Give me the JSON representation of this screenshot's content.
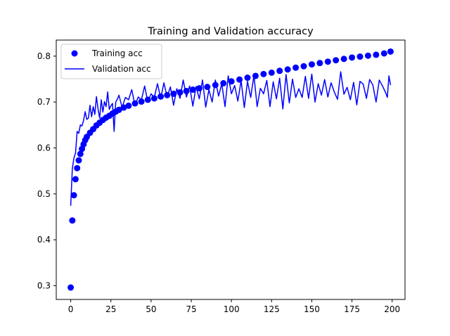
{
  "chart_data": {
    "type": "line",
    "title": "Training and Validation accuracy",
    "xlabel": "",
    "ylabel": "",
    "xlim": [
      -9,
      208
    ],
    "ylim": [
      0.27,
      0.835
    ],
    "x_ticks": [
      0,
      25,
      50,
      75,
      100,
      125,
      150,
      175,
      200
    ],
    "x_tick_labels": [
      "0",
      "25",
      "50",
      "75",
      "100",
      "125",
      "150",
      "175",
      "200"
    ],
    "y_ticks": [
      0.3,
      0.4,
      0.5,
      0.6,
      0.7,
      0.8
    ],
    "y_tick_labels": [
      "0.3",
      "0.4",
      "0.5",
      "0.6",
      "0.7",
      "0.8"
    ],
    "grid": false,
    "legend_position": "top-left",
    "series": [
      {
        "name": "Training acc",
        "style": "markers",
        "color": "#0000ff",
        "x": [
          0,
          1,
          2,
          3,
          4,
          5,
          6,
          7,
          8,
          9,
          10,
          12,
          14,
          16,
          18,
          20,
          22,
          24,
          26,
          28,
          30,
          33,
          36,
          40,
          44,
          48,
          52,
          56,
          60,
          64,
          68,
          72,
          76,
          80,
          85,
          90,
          95,
          100,
          105,
          110,
          115,
          120,
          125,
          130,
          135,
          140,
          145,
          150,
          155,
          160,
          165,
          170,
          175,
          180,
          185,
          190,
          195,
          199
        ],
        "values": [
          0.296,
          0.442,
          0.497,
          0.532,
          0.556,
          0.573,
          0.587,
          0.598,
          0.608,
          0.617,
          0.624,
          0.633,
          0.641,
          0.649,
          0.655,
          0.661,
          0.666,
          0.67,
          0.675,
          0.679,
          0.683,
          0.688,
          0.692,
          0.697,
          0.701,
          0.705,
          0.708,
          0.712,
          0.715,
          0.718,
          0.721,
          0.724,
          0.727,
          0.73,
          0.733,
          0.737,
          0.741,
          0.745,
          0.749,
          0.753,
          0.757,
          0.761,
          0.764,
          0.768,
          0.771,
          0.775,
          0.778,
          0.782,
          0.785,
          0.788,
          0.791,
          0.794,
          0.797,
          0.799,
          0.801,
          0.803,
          0.806,
          0.81
        ]
      },
      {
        "name": "Validation acc",
        "style": "line",
        "color": "#0000ff",
        "x": [
          0,
          1,
          2,
          3,
          4,
          5,
          6,
          7,
          8,
          9,
          10,
          11,
          12,
          13,
          14,
          15,
          16,
          17,
          18,
          19,
          20,
          21,
          22,
          23,
          24,
          25,
          26,
          27,
          28,
          29,
          30,
          32,
          34,
          36,
          38,
          40,
          42,
          44,
          46,
          48,
          50,
          52,
          54,
          56,
          58,
          60,
          62,
          64,
          66,
          68,
          70,
          72,
          74,
          76,
          78,
          80,
          82,
          84,
          86,
          88,
          90,
          92,
          94,
          96,
          98,
          100,
          102,
          104,
          106,
          108,
          110,
          112,
          114,
          116,
          118,
          120,
          122,
          124,
          126,
          128,
          130,
          132,
          134,
          136,
          138,
          140,
          142,
          144,
          146,
          148,
          150,
          152,
          154,
          156,
          158,
          160,
          162,
          164,
          166,
          168,
          170,
          172,
          174,
          176,
          178,
          180,
          182,
          184,
          186,
          188,
          190,
          192,
          194,
          196,
          197,
          198,
          199
        ],
        "values": [
          0.474,
          0.555,
          0.578,
          0.589,
          0.636,
          0.632,
          0.65,
          0.648,
          0.66,
          0.679,
          0.662,
          0.665,
          0.693,
          0.668,
          0.69,
          0.673,
          0.712,
          0.685,
          0.665,
          0.705,
          0.678,
          0.701,
          0.69,
          0.722,
          0.684,
          0.692,
          0.697,
          0.636,
          0.7,
          0.706,
          0.715,
          0.688,
          0.71,
          0.705,
          0.727,
          0.692,
          0.711,
          0.705,
          0.735,
          0.7,
          0.718,
          0.71,
          0.74,
          0.708,
          0.742,
          0.711,
          0.733,
          0.693,
          0.729,
          0.708,
          0.748,
          0.711,
          0.735,
          0.691,
          0.734,
          0.707,
          0.748,
          0.689,
          0.727,
          0.7,
          0.748,
          0.713,
          0.74,
          0.69,
          0.757,
          0.718,
          0.736,
          0.702,
          0.747,
          0.688,
          0.745,
          0.71,
          0.758,
          0.69,
          0.73,
          0.718,
          0.747,
          0.69,
          0.744,
          0.707,
          0.752,
          0.685,
          0.76,
          0.698,
          0.75,
          0.71,
          0.729,
          0.71,
          0.756,
          0.708,
          0.761,
          0.7,
          0.74,
          0.715,
          0.749,
          0.711,
          0.742,
          0.722,
          0.706,
          0.766,
          0.717,
          0.732,
          0.705,
          0.743,
          0.694,
          0.745,
          0.739,
          0.708,
          0.749,
          0.737,
          0.7,
          0.748,
          0.735,
          0.72,
          0.71,
          0.757,
          0.737
        ]
      }
    ]
  }
}
